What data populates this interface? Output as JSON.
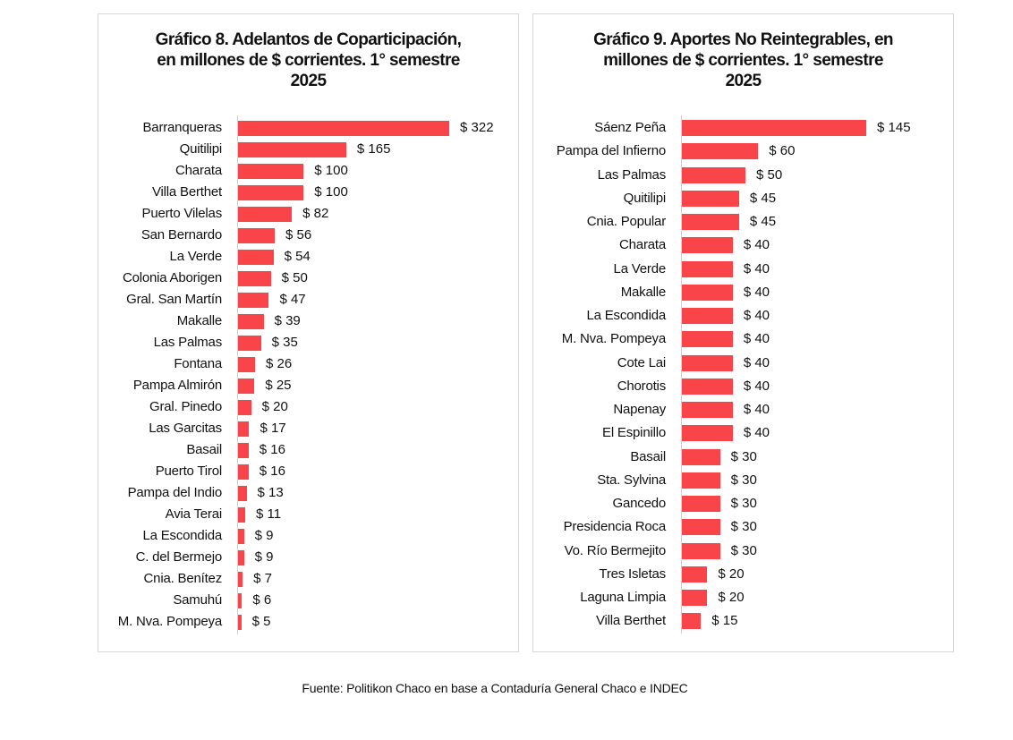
{
  "chart_data": [
    {
      "type": "bar",
      "orientation": "horizontal",
      "title_lines": [
        "Gráfico 8. Adelantos de Coparticipación,",
        "en millones de $ corrientes. 1° semestre",
        "2025"
      ],
      "categories": [
        "Barranqueras",
        "Quitilipi",
        "Charata",
        "Villa Berthet",
        "Puerto Vilelas",
        "San Bernardo",
        "La Verde",
        "Colonia Aborigen",
        "Gral. San Martín",
        "Makalle",
        "Las Palmas",
        "Fontana",
        "Pampa Almirón",
        "Gral. Pinedo",
        "Las Garcitas",
        "Basail",
        "Puerto Tirol",
        "Pampa del Indio",
        "Avia Terai",
        "La Escondida",
        "C. del Bermejo",
        "Cnia. Benítez",
        "Samuhú",
        "M. Nva. Pompeya"
      ],
      "values": [
        322,
        165,
        100,
        100,
        82,
        56,
        54,
        50,
        47,
        39,
        35,
        26,
        25,
        20,
        17,
        16,
        16,
        13,
        11,
        9,
        9,
        7,
        6,
        5
      ],
      "labels": [
        "$ 322",
        "$ 165",
        "$ 100",
        "$ 100",
        "$ 82",
        "$ 56",
        "$ 54",
        "$ 50",
        "$ 47",
        "$ 39",
        "$ 35",
        "$ 26",
        "$ 25",
        "$ 20",
        "$ 17",
        "$ 16",
        "$ 16",
        "$ 13",
        "$ 11",
        "$ 9",
        "$ 9",
        "$ 7",
        "$ 6",
        "$ 5"
      ],
      "color": "#F94449",
      "xlim": [
        0,
        322
      ],
      "grid": false
    },
    {
      "type": "bar",
      "orientation": "horizontal",
      "title_lines": [
        "Gráfico 9. Aportes No Reintegrables, en",
        "millones de $ corrientes. 1° semestre",
        "2025"
      ],
      "categories": [
        "Sáenz Peña",
        "Pampa del Infierno",
        "Las Palmas",
        "Quitilipi",
        "Cnia. Popular",
        "Charata",
        "La Verde",
        "Makalle",
        "La Escondida",
        "M. Nva. Pompeya",
        "Cote Lai",
        "Chorotis",
        "Napenay",
        "El Espinillo",
        "Basail",
        "Sta. Sylvina",
        "Gancedo",
        "Presidencia Roca",
        "Vo. Río Bermejito",
        "Tres Isletas",
        "Laguna Limpia",
        "Villa Berthet"
      ],
      "values": [
        145,
        60,
        50,
        45,
        45,
        40,
        40,
        40,
        40,
        40,
        40,
        40,
        40,
        40,
        30,
        30,
        30,
        30,
        30,
        20,
        20,
        15
      ],
      "labels": [
        "$ 145",
        "$ 60",
        "$ 50",
        "$ 45",
        "$ 45",
        "$ 40",
        "$ 40",
        "$ 40",
        "$ 40",
        "$ 40",
        "$ 40",
        "$ 40",
        "$ 40",
        "$ 40",
        "$ 30",
        "$ 30",
        "$ 30",
        "$ 30",
        "$ 30",
        "$ 20",
        "$ 20",
        "$ 15"
      ],
      "color": "#F94449",
      "xlim": [
        0,
        145
      ],
      "grid": false
    }
  ],
  "source": "Fuente: Politikon Chaco en base a Contaduría General Chaco e INDEC"
}
